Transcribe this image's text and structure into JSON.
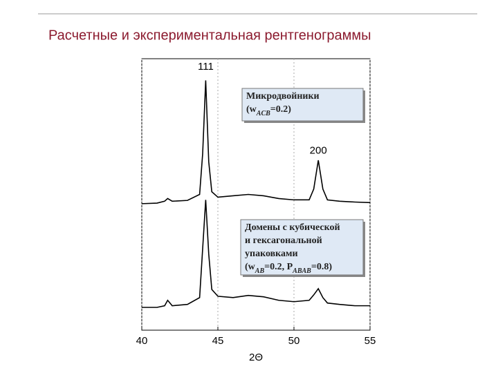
{
  "title": "Расчетные и экспериментальная рентгенограммы",
  "chart_data": {
    "type": "line",
    "xlabel": "2Θ",
    "xlim": [
      40,
      55
    ],
    "xticks": [
      40,
      45,
      50,
      55
    ],
    "ylim": [
      0,
      100
    ],
    "grid": true,
    "x": [
      40,
      41,
      41.5,
      41.7,
      42,
      43,
      43.8,
      44.0,
      44.2,
      44.4,
      44.6,
      45,
      46,
      47,
      48,
      49,
      50,
      51,
      51.3,
      51.6,
      51.9,
      52.2,
      53,
      54,
      55
    ],
    "series": [
      {
        "color": "#000000",
        "values": [
          46.6,
          46.8,
          47.5,
          48.5,
          47.5,
          47.8,
          50,
          65,
          92,
          62,
          51,
          49,
          49.5,
          50,
          49.5,
          48.5,
          48,
          48,
          52,
          62.6,
          52,
          48,
          47.5,
          47.2,
          47
        ]
      },
      {
        "color": "#000000",
        "values": [
          8.4,
          8.4,
          9,
          11,
          9,
          9.5,
          12,
          30,
          48,
          28,
          15,
          12.5,
          12,
          12.8,
          12.3,
          11,
          10.5,
          11,
          13,
          15.3,
          12,
          10,
          9.5,
          9,
          9
        ]
      }
    ],
    "annotations": [
      {
        "text": "111",
        "x": 44.2,
        "y": 97
      },
      {
        "text": "200",
        "x": 51.6,
        "y": 66
      }
    ],
    "boxes": [
      {
        "lines": [
          [
            "Микродвойники"
          ],
          [
            "(w",
            "ACB",
            "=0.2)"
          ]
        ]
      },
      {
        "lines": [
          [
            "Домены с кубической"
          ],
          [
            "и гексагональной"
          ],
          [
            "упаковками"
          ],
          [
            "(w",
            "AB",
            "=0.2, P",
            "ABAB",
            "=0.8)"
          ]
        ]
      }
    ]
  }
}
